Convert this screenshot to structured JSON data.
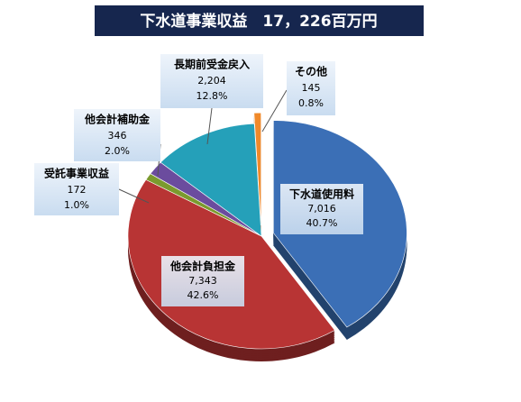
{
  "chart_data": {
    "type": "pie",
    "title": "下水道事業収益　17，226百万円",
    "categories": [
      "下水道使用料",
      "他会計負担金",
      "受託事業収益",
      "他会計補助金",
      "長期前受金戻入",
      "その他"
    ],
    "values": [
      7016,
      7343,
      172,
      346,
      2204,
      145
    ],
    "value_labels": [
      "7,016",
      "7,343",
      "172",
      "346",
      "2,204",
      "145"
    ],
    "percent_labels": [
      "40.7%",
      "42.6%",
      "1.0%",
      "2.0%",
      "12.8%",
      "0.8%"
    ],
    "colors": [
      "#3b6fb6",
      "#b83434",
      "#7b9a2e",
      "#6b4c9e",
      "#25a0b9",
      "#f0892a"
    ],
    "explode": [
      true,
      false,
      false,
      false,
      false,
      true
    ]
  }
}
